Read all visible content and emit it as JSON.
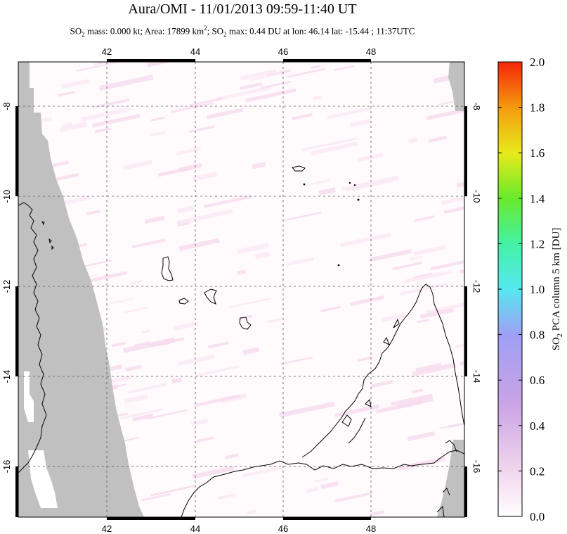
{
  "title": "Aura/OMI - 11/01/2013 09:59-11:40 UT",
  "subtitle": {
    "p1": "SO",
    "s1": "2",
    "p2": " mass: 0.000 kt; Area: 17899 km",
    "sup": "2",
    "p3": "; SO",
    "s2": "2",
    "p4": " max: 0.44 DU at lon: 46.14 lat: -15.44 ; 11:37UTC"
  },
  "map": {
    "lon_range": [
      40.0,
      50.0
    ],
    "lat_range": [
      -17.0,
      -7.0
    ],
    "lon_ticks": [
      "42",
      "44",
      "46",
      "48"
    ],
    "lat_ticks": [
      "-8",
      "-10",
      "-12",
      "-14",
      "-16"
    ],
    "grid": true,
    "colors": {
      "nodata": "#c0c0c0",
      "background": "#fffafc",
      "coast": "#000000",
      "grid": "#555555"
    }
  },
  "colorbar": {
    "label": "SO2 PCA column 5 km [DU]",
    "label_main": "SO",
    "label_sub": "2",
    "label_rest": " PCA column 5 km [DU]",
    "ticks": [
      "2.0",
      "1.8",
      "1.6",
      "1.4",
      "1.2",
      "1.0",
      "0.8",
      "0.6",
      "0.4",
      "0.2",
      "0.0"
    ],
    "range": [
      0.0,
      2.0
    ]
  }
}
